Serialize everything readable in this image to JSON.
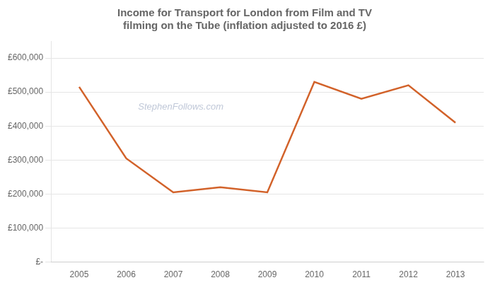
{
  "chart_data": {
    "type": "line",
    "title": "Income for Transport for London from Film and TV\nfilming on the Tube (inflation adjusted to 2016 £)",
    "x": [
      2005,
      2006,
      2007,
      2008,
      2009,
      2010,
      2011,
      2012,
      2013
    ],
    "values": [
      515000,
      305000,
      205000,
      220000,
      205000,
      530000,
      480000,
      520000,
      410000
    ],
    "color": "#d2622a",
    "xlim": [
      2004.4,
      2013.6
    ],
    "xticks": [
      2005,
      2006,
      2007,
      2008,
      2009,
      2010,
      2011,
      2012,
      2013
    ],
    "ylim": [
      0,
      650000
    ],
    "yticks": [
      {
        "value": 0,
        "label": "£-"
      },
      {
        "value": 100000,
        "label": "£100,000"
      },
      {
        "value": 200000,
        "label": "£200,000"
      },
      {
        "value": 300000,
        "label": "£300,000"
      },
      {
        "value": 400000,
        "label": "£400,000"
      },
      {
        "value": 500000,
        "label": "£500,000"
      },
      {
        "value": 600000,
        "label": "£600,000"
      }
    ],
    "grid": "y",
    "annotations": [
      "StephenFollows.com"
    ]
  }
}
